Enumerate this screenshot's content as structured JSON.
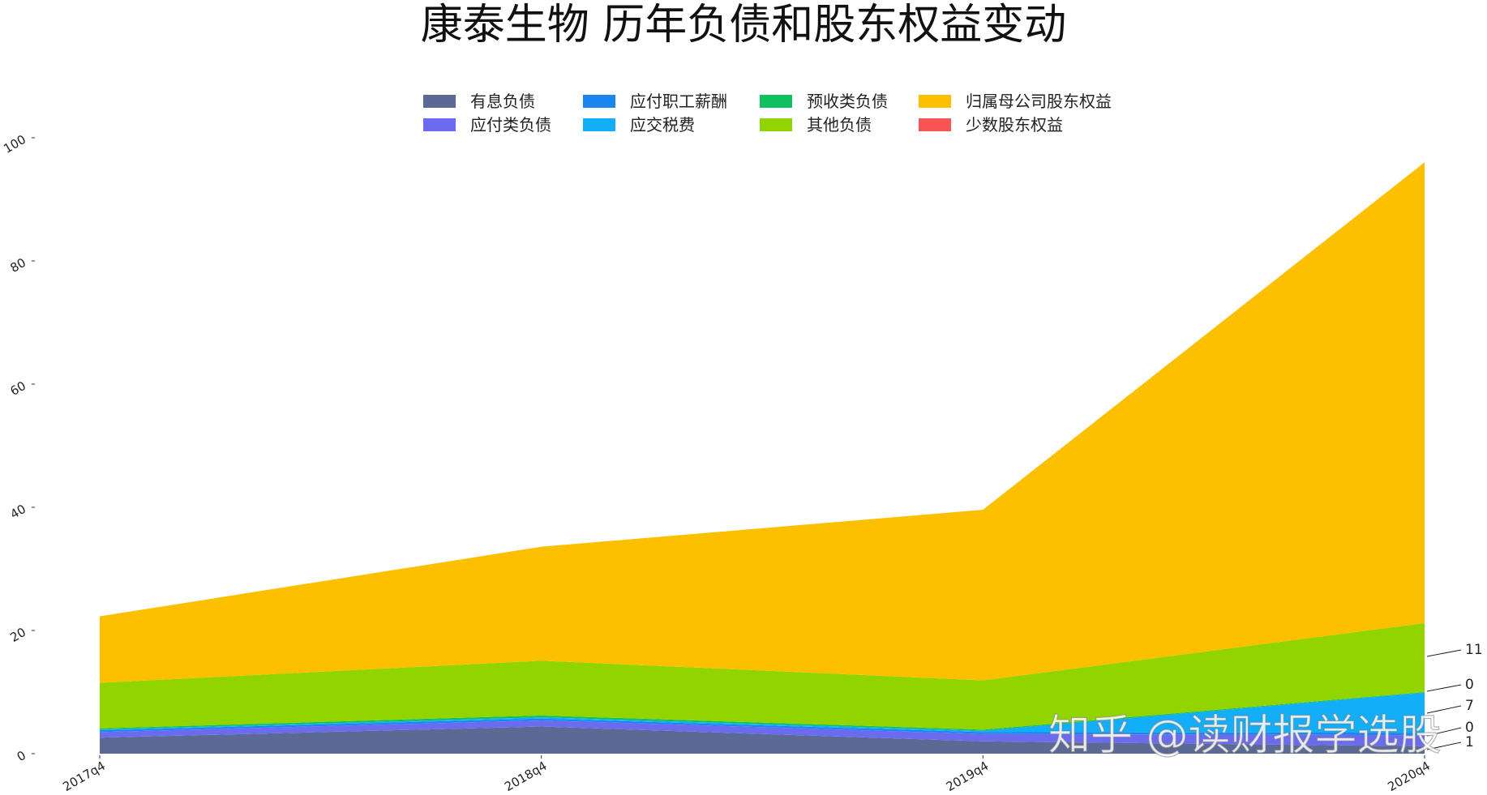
{
  "chart_data": {
    "type": "area",
    "stacked": true,
    "title": "康泰生物 历年负债和股东权益变动",
    "categories": [
      "2017q4",
      "2018q4",
      "2019q4",
      "2020q4"
    ],
    "ylim": [
      0,
      100
    ],
    "yticks": [
      0,
      20,
      40,
      60,
      80,
      100
    ],
    "ytick_labels": [
      "0",
      "20",
      "40",
      "60",
      "80",
      "100"
    ],
    "grid": false,
    "legend_position": "top-center",
    "series": [
      {
        "name": "有息负债",
        "color": "#5a6a95",
        "values": [
          2.6,
          4.4,
          2.0,
          1.2
        ]
      },
      {
        "name": "应付类负债",
        "color": "#6b6bf0",
        "values": [
          0.9,
          1.0,
          1.2,
          1.8
        ]
      },
      {
        "name": "应付职工薪酬",
        "color": "#1b86f0",
        "values": [
          0.3,
          0.3,
          0.3,
          0.4
        ]
      },
      {
        "name": "应交税费",
        "color": "#12aef8",
        "values": [
          0.1,
          0.2,
          0.2,
          6.5
        ]
      },
      {
        "name": "预收类负债",
        "color": "#10c060",
        "values": [
          0.2,
          0.3,
          0.2,
          0.1
        ]
      },
      {
        "name": "其他负债",
        "color": "#92d400",
        "values": [
          7.4,
          8.9,
          8.0,
          11.2
        ]
      },
      {
        "name": "归属母公司股东权益",
        "color": "#fcc000",
        "values": [
          10.8,
          18.5,
          27.7,
          74.8
        ]
      },
      {
        "name": "少数股东权益",
        "color": "#f75555",
        "values": [
          0,
          0,
          0,
          0
        ]
      }
    ],
    "legend_order": [
      "有息负债",
      "应付职工薪酬",
      "预收类负债",
      "归属母公司股东权益",
      "应付类负债",
      "应交税费",
      "其他负债",
      "少数股东权益"
    ],
    "end_labels": [
      "11",
      "0",
      "7",
      "0",
      "1"
    ],
    "watermark": "知乎 @读财报学选股"
  }
}
